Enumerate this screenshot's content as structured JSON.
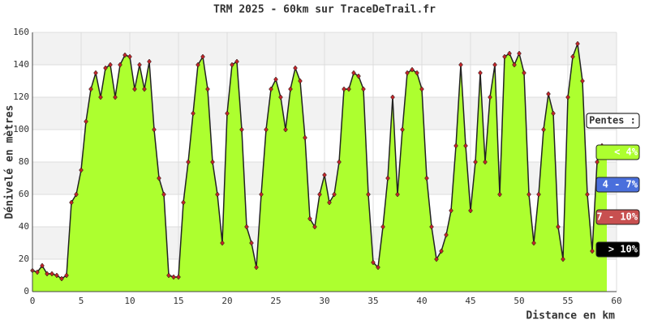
{
  "chart_data": {
    "type": "area",
    "title": "TRM 2025 - 60km sur TraceDeTrail.fr",
    "xlabel": "Distance en km",
    "ylabel": "Dénivelé en mètres",
    "x": [
      0,
      0.5,
      1,
      1.5,
      2,
      2.5,
      3,
      3.5,
      4,
      4.5,
      5,
      5.5,
      6,
      6.5,
      7,
      7.5,
      8,
      8.5,
      9,
      9.5,
      10,
      10.5,
      11,
      11.5,
      12,
      12.5,
      13,
      13.5,
      14,
      14.5,
      15,
      15.5,
      16,
      16.5,
      17,
      17.5,
      18,
      18.5,
      19,
      19.5,
      20,
      20.5,
      21,
      21.5,
      22,
      22.5,
      23,
      23.5,
      24,
      24.5,
      25,
      25.5,
      26,
      26.5,
      27,
      27.5,
      28,
      28.5,
      29,
      29.5,
      30,
      30.5,
      31,
      31.5,
      32,
      32.5,
      33,
      33.5,
      34,
      34.5,
      35,
      35.5,
      36,
      36.5,
      37,
      37.5,
      38,
      38.5,
      39,
      39.5,
      40,
      40.5,
      41,
      41.5,
      42,
      42.5,
      43,
      43.5,
      44,
      44.5,
      45,
      45.5,
      46,
      46.5,
      47,
      47.5,
      48,
      48.5,
      49,
      49.5,
      50,
      50.5,
      51,
      51.5,
      52,
      52.5,
      53,
      53.5,
      54,
      54.5,
      55,
      55.5,
      56,
      56.5,
      57,
      57.5,
      58,
      58.5,
      59
    ],
    "values": [
      13,
      12,
      16,
      11,
      11,
      10,
      8,
      10,
      55,
      60,
      75,
      105,
      125,
      135,
      120,
      138,
      140,
      120,
      140,
      146,
      145,
      125,
      140,
      125,
      142,
      100,
      70,
      60,
      10,
      9,
      9,
      55,
      80,
      110,
      140,
      145,
      125,
      80,
      60,
      30,
      110,
      140,
      142,
      100,
      40,
      30,
      15,
      60,
      100,
      125,
      131,
      120,
      100,
      125,
      138,
      130,
      95,
      45,
      40,
      60,
      72,
      55,
      60,
      80,
      125,
      125,
      135,
      133,
      125,
      60,
      18,
      15,
      40,
      70,
      120,
      60,
      100,
      135,
      137,
      135,
      125,
      70,
      40,
      20,
      25,
      35,
      50,
      90,
      140,
      90,
      50,
      80,
      135,
      80,
      120,
      140,
      60,
      145,
      147,
      140,
      147,
      135,
      60,
      30,
      60,
      100,
      122,
      110,
      40,
      20,
      120,
      145,
      153,
      130,
      60,
      25,
      80,
      90,
      85
    ],
    "fill_color": "#adff2f",
    "line_color": "#222222",
    "marker_color": "#c0262b",
    "xlim": [
      0,
      60
    ],
    "xticks": [
      0,
      5,
      10,
      15,
      20,
      25,
      30,
      35,
      40,
      45,
      50,
      55,
      60
    ],
    "ylim": [
      0,
      160
    ],
    "yticks": [
      0,
      20,
      40,
      60,
      80,
      100,
      120,
      140,
      160
    ],
    "grid": true,
    "legend_title": "Pentes :",
    "legend": [
      {
        "label": "< 4%",
        "color": "#adff2f"
      },
      {
        "label": "4 - 7%",
        "color": "#4a6fdc"
      },
      {
        "label": "7 - 10%",
        "color": "#c85050"
      },
      {
        "label": "> 10%",
        "color": "#000000"
      }
    ]
  }
}
